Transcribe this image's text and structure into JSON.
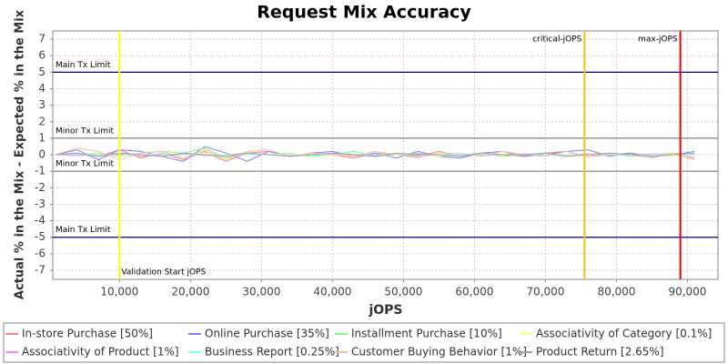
{
  "chart_data": {
    "type": "line",
    "title": "Request Mix Accuracy",
    "x_label": "jOPS",
    "y_label": "Actual % in the Mix - Expected % in the Mix",
    "x": [
      1000,
      4000,
      7000,
      10000,
      13000,
      16000,
      19000,
      22000,
      25000,
      28000,
      31000,
      34000,
      37000,
      40000,
      43000,
      46000,
      49000,
      52000,
      55000,
      58000,
      61000,
      64000,
      67000,
      70000,
      73000,
      76000,
      79000,
      82000,
      85000,
      88000,
      91000
    ],
    "series": [
      {
        "name": "In-store Purchase [50%]",
        "color": "#ff8080",
        "values": [
          0,
          0.1,
          -0.1,
          0.3,
          -0.2,
          0.1,
          -0.3,
          0.2,
          -0.4,
          0.1,
          0.2,
          -0.1,
          0.1,
          0,
          -0.2,
          0.1,
          0,
          -0.1,
          0.2,
          -0.1,
          0.1,
          0,
          -0.1,
          0.1,
          0.2,
          -0.1,
          0,
          0.1,
          -0.1,
          0,
          -0.2
        ]
      },
      {
        "name": "Online Purchase [35%]",
        "color": "#8080ff",
        "values": [
          0,
          0.3,
          -0.3,
          0.3,
          0.2,
          -0.1,
          -0.4,
          0.5,
          0.1,
          -0.4,
          0.2,
          -0.1,
          0.1,
          0.2,
          -0.1,
          0.1,
          -0.2,
          0.2,
          -0.1,
          -0.2,
          0.1,
          0.2,
          -0.1,
          0,
          0.2,
          0.3,
          -0.1,
          0.1,
          -0.1,
          0,
          0.2
        ]
      },
      {
        "name": "Installment Purchase [10%]",
        "color": "#80ff80",
        "values": [
          0,
          0,
          0.1,
          -0.1,
          0.1,
          0.2,
          0.1,
          0.4,
          -0.2,
          0.1,
          0,
          0.1,
          -0.1,
          0,
          0.2,
          -0.1,
          0,
          0.1,
          -0.1,
          0,
          0.1,
          -0.1,
          0,
          0.1,
          -0.1,
          0,
          0.1,
          -0.1,
          0,
          0.1,
          0
        ]
      },
      {
        "name": "Associativity of Category [0.1%]",
        "color": "#ffff80",
        "values": [
          0,
          0,
          0.05,
          -0.05,
          0,
          0.05,
          0,
          0.1,
          -0.05,
          0,
          0,
          0.05,
          0,
          -0.05,
          0,
          0,
          0.05,
          0,
          -0.05,
          0,
          0,
          0.05,
          0,
          0,
          -0.05,
          0,
          0.05,
          0,
          0,
          -0.05,
          0
        ]
      },
      {
        "name": "Associativity of Product [1%]",
        "color": "#ff80ff",
        "values": [
          0,
          -0.05,
          0,
          0.05,
          -0.1,
          0,
          0.05,
          -0.05,
          0,
          0.1,
          0,
          -0.05,
          0,
          0.05,
          0,
          -0.05,
          0,
          0.05,
          0,
          0,
          -0.05,
          0,
          0.05,
          0,
          0,
          0.05,
          -0.05,
          0,
          0.05,
          0,
          0
        ]
      },
      {
        "name": "Business Report [0.25%]",
        "color": "#80ffff",
        "values": [
          0,
          0.02,
          0,
          -0.02,
          0,
          0.03,
          0,
          -0.02,
          0,
          0.02,
          0,
          0,
          -0.02,
          0,
          0.02,
          0,
          0,
          -0.02,
          0,
          0.02,
          0,
          0,
          -0.02,
          0,
          0,
          0.02,
          0,
          -0.02,
          0,
          0,
          0.02
        ]
      },
      {
        "name": "Customer Buying Behavior [1%]",
        "color": "#ffc0a0",
        "values": [
          0,
          0.4,
          0.2,
          -0.3,
          0.1,
          0.2,
          -0.2,
          0.3,
          -0.3,
          0.2,
          0.3,
          -0.1,
          0.1,
          0,
          -0.1,
          0.2,
          0,
          -0.2,
          0.1,
          0.1,
          -0.1,
          0.2,
          0,
          -0.1,
          0.2,
          -0.1,
          0.1,
          0,
          -0.2,
          0.1,
          -0.3
        ]
      },
      {
        "name": "Product Return [2.65%]",
        "color": "#a0a0a0",
        "values": [
          0,
          0.1,
          -0.1,
          0.1,
          0,
          -0.1,
          0.1,
          0,
          -0.1,
          0.1,
          0,
          -0.1,
          0,
          0.1,
          0,
          -0.1,
          0.1,
          0,
          0,
          -0.1,
          0.1,
          0,
          0,
          0.1,
          -0.1,
          0,
          0.1,
          0,
          -0.1,
          0,
          0.1
        ]
      }
    ],
    "xlim": [
      600,
      94300
    ],
    "xticks": [
      {
        "value": 10000,
        "label": "10,000"
      },
      {
        "value": 20000,
        "label": "20,000"
      },
      {
        "value": 30000,
        "label": "30,000"
      },
      {
        "value": 40000,
        "label": "40,000"
      },
      {
        "value": 50000,
        "label": "50,000"
      },
      {
        "value": 60000,
        "label": "60,000"
      },
      {
        "value": 70000,
        "label": "70,000"
      },
      {
        "value": 80000,
        "label": "80,000"
      },
      {
        "value": 90000,
        "label": "90,000"
      }
    ],
    "ylim": [
      -7.55,
      7.5
    ],
    "yticks": [
      -7,
      -6,
      -5,
      -4,
      -3,
      -2,
      -1,
      0,
      1,
      2,
      3,
      4,
      5,
      6,
      7
    ],
    "grid": true,
    "legend": "bottom",
    "hlines": [
      {
        "value": 5,
        "label": "Main Tx Limit",
        "color": "#000080"
      },
      {
        "value": 1,
        "label": "Minor Tx Limit",
        "color": "#808080"
      },
      {
        "value": -1,
        "label": "Minor Tx Limit",
        "color": "#808080"
      },
      {
        "value": -5,
        "label": "Main Tx Limit",
        "color": "#000080"
      }
    ],
    "vlines": [
      {
        "value": 10000,
        "label": "Validation Start jOPS",
        "color": "#ffff00"
      },
      {
        "value": 75500,
        "label": "critical-jOPS",
        "color": "#ffc000"
      },
      {
        "value": 89000,
        "label": "max-jOPS",
        "color": "#ff0000"
      }
    ]
  }
}
